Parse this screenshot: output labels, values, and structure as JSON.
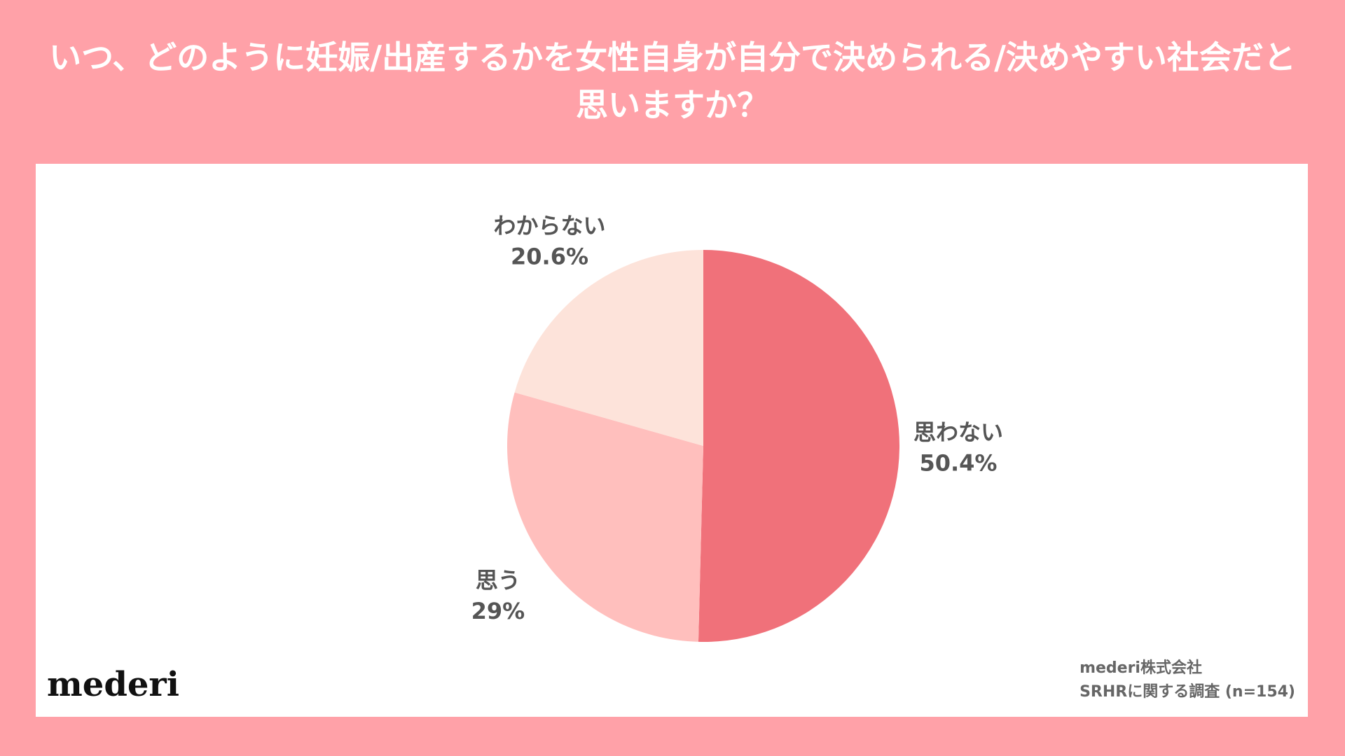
{
  "chart_data": {
    "type": "pie",
    "title": "いつ、どのように妊娠/出産するかを女性自身が自分で決められる/決めやすい社会だと思いますか？",
    "categories": [
      "思わない",
      "思う",
      "わからない"
    ],
    "values": [
      50.4,
      29,
      20.6
    ],
    "value_labels": [
      "50.4%",
      "29%",
      "20.6%"
    ],
    "colors": [
      "#f0717a",
      "#ffbfbd",
      "#fde3da"
    ]
  },
  "footer": {
    "logo": "mederi",
    "company": "mederi株式会社",
    "survey": "SRHRに関する調査 (n=154)"
  }
}
